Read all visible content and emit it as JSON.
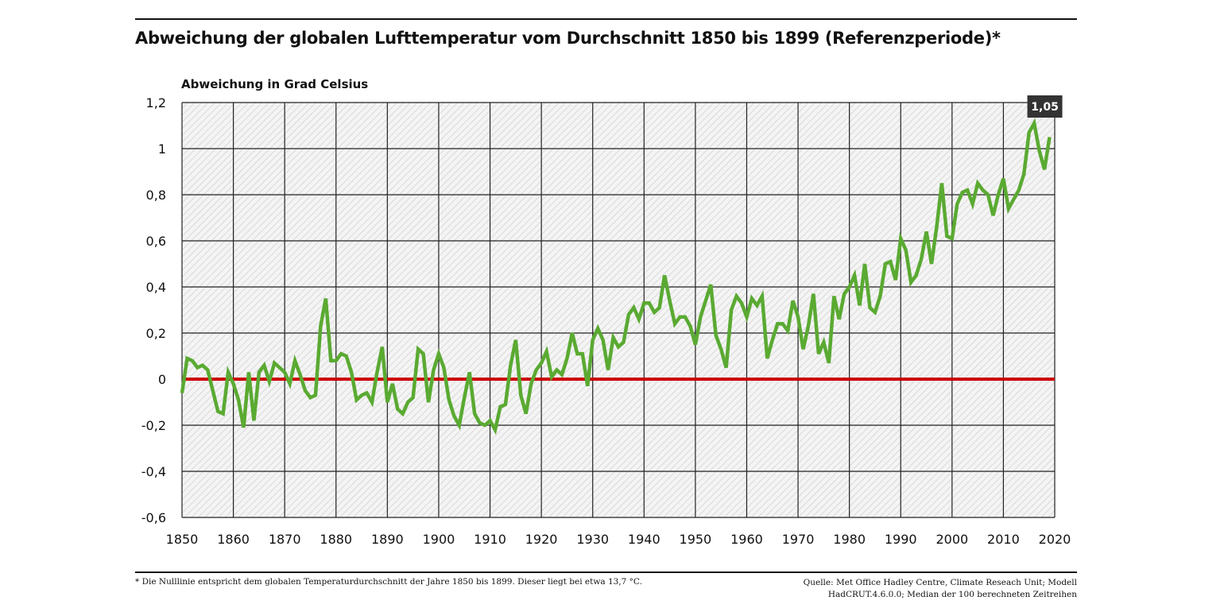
{
  "chart_data": {
    "type": "line",
    "title": "Abweichung der globalen Lufttemperatur vom Durchschnitt 1850 bis 1899 (Referenzperiode)*",
    "ylabel": "Abweichung in Grad Celsius",
    "xlabel": "",
    "xlim": [
      1850,
      2020
    ],
    "ylim": [
      -0.6,
      1.2
    ],
    "x_ticks": [
      "1850",
      "1860",
      "1870",
      "1880",
      "1890",
      "1900",
      "1910",
      "1920",
      "1930",
      "1940",
      "1950",
      "1960",
      "1970",
      "1980",
      "1990",
      "2000",
      "2010",
      "2020"
    ],
    "y_ticks": [
      "1,2",
      "1",
      "0,8",
      "0,6",
      "0,4",
      "0,2",
      "0",
      "-0,2",
      "-0,4",
      "-0,6"
    ],
    "grid": true,
    "x_start": 1850,
    "series": [
      {
        "color": "#5aaa32",
        "values": [
          -0.06,
          0.09,
          0.08,
          0.05,
          0.06,
          0.04,
          -0.05,
          -0.14,
          -0.15,
          0.03,
          -0.02,
          -0.09,
          -0.21,
          0.03,
          -0.18,
          0.03,
          0.06,
          -0.01,
          0.07,
          0.05,
          0.03,
          -0.02,
          0.08,
          0.02,
          -0.05,
          -0.08,
          -0.07,
          0.23,
          0.35,
          0.08,
          0.08,
          0.11,
          0.1,
          0.03,
          -0.09,
          -0.07,
          -0.06,
          -0.1,
          0.03,
          0.14,
          -0.1,
          -0.02,
          -0.13,
          -0.15,
          -0.1,
          -0.08,
          0.13,
          0.11,
          -0.1,
          0.04,
          0.11,
          0.05,
          -0.09,
          -0.16,
          -0.2,
          -0.08,
          0.03,
          -0.15,
          -0.19,
          -0.2,
          -0.18,
          -0.22,
          -0.12,
          -0.11,
          0.06,
          0.17,
          -0.07,
          -0.15,
          -0.02,
          0.04,
          0.07,
          0.12,
          0.01,
          0.04,
          0.02,
          0.09,
          0.2,
          0.11,
          0.11,
          -0.03,
          0.17,
          0.22,
          0.17,
          0.04,
          0.18,
          0.14,
          0.16,
          0.28,
          0.31,
          0.26,
          0.33,
          0.33,
          0.29,
          0.31,
          0.45,
          0.34,
          0.24,
          0.27,
          0.27,
          0.23,
          0.15,
          0.27,
          0.34,
          0.41,
          0.19,
          0.13,
          0.05,
          0.3,
          0.36,
          0.33,
          0.27,
          0.35,
          0.32,
          0.36,
          0.09,
          0.17,
          0.24,
          0.24,
          0.21,
          0.34,
          0.27,
          0.13,
          0.23,
          0.37,
          0.11,
          0.16,
          0.07,
          0.36,
          0.26,
          0.37,
          0.4,
          0.45,
          0.32,
          0.5,
          0.31,
          0.29,
          0.36,
          0.5,
          0.51,
          0.43,
          0.61,
          0.56,
          0.42,
          0.45,
          0.52,
          0.64,
          0.5,
          0.66,
          0.85,
          0.62,
          0.61,
          0.76,
          0.81,
          0.82,
          0.76,
          0.85,
          0.82,
          0.8,
          0.71,
          0.8,
          0.87,
          0.74,
          0.78,
          0.82,
          0.89,
          1.07,
          1.11,
          0.99,
          0.91,
          1.05
        ]
      }
    ],
    "reference_line": {
      "value": 0,
      "color": "#cc0000"
    },
    "annotation": {
      "text": "1,05",
      "x": 2019,
      "y": 1.05
    },
    "legend": "none"
  },
  "footnote": "* Die Nulllinie entspricht dem globalen Temperaturdurchschnitt der Jahre 1850 bis 1899. Dieser liegt bei etwa 13,7 °C.",
  "source_line1": "Quelle: Met Office Hadley Centre, Climate Reseach Unit; Modell",
  "source_line2": "HadCRUT.4.6.0.0; Median der 100 berechneten Zeitreihen"
}
